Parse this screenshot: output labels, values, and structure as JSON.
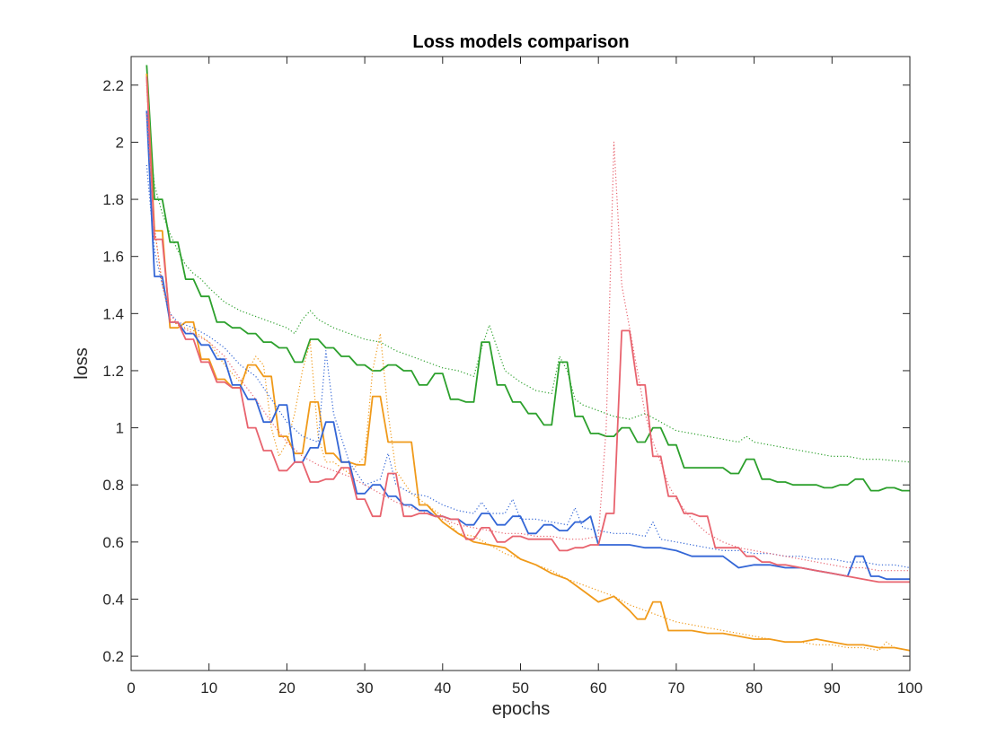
{
  "chart_data": {
    "type": "line",
    "title": "Loss models comparison",
    "xlabel": "epochs",
    "ylabel": "loss",
    "xlim": [
      0,
      100
    ],
    "ylim": [
      0.15,
      2.3
    ],
    "xticks": [
      0,
      10,
      20,
      30,
      40,
      50,
      60,
      70,
      80,
      90,
      100
    ],
    "yticks": [
      0.2,
      0.4,
      0.6,
      0.8,
      1,
      1.2,
      1.4,
      1.6,
      1.8,
      2,
      2.2
    ],
    "grid": false,
    "legend": "none",
    "series": [
      {
        "color": "#2ca02c",
        "style": "dotted",
        "x": [
          2,
          3,
          4,
          5,
          6,
          7,
          8,
          9,
          10,
          12,
          14,
          16,
          18,
          20,
          21,
          22,
          23,
          24,
          26,
          28,
          30,
          32,
          34,
          36,
          38,
          40,
          42,
          44,
          45,
          46,
          47,
          48,
          50,
          52,
          54,
          55,
          56,
          57,
          58,
          60,
          62,
          64,
          66,
          68,
          70,
          72,
          74,
          76,
          78,
          79,
          80,
          82,
          84,
          86,
          88,
          90,
          92,
          94,
          96,
          98,
          100
        ],
        "y": [
          2.1,
          1.85,
          1.75,
          1.68,
          1.62,
          1.57,
          1.54,
          1.52,
          1.49,
          1.44,
          1.41,
          1.39,
          1.37,
          1.35,
          1.33,
          1.38,
          1.41,
          1.38,
          1.35,
          1.33,
          1.31,
          1.3,
          1.27,
          1.25,
          1.23,
          1.21,
          1.2,
          1.18,
          1.28,
          1.36,
          1.28,
          1.2,
          1.16,
          1.13,
          1.12,
          1.25,
          1.2,
          1.1,
          1.08,
          1.06,
          1.04,
          1.03,
          1.05,
          1.02,
          0.99,
          0.98,
          0.97,
          0.96,
          0.95,
          0.97,
          0.95,
          0.94,
          0.93,
          0.92,
          0.91,
          0.9,
          0.9,
          0.89,
          0.89,
          0.885,
          0.88
        ]
      },
      {
        "color": "#2ca02c",
        "style": "solid",
        "x": [
          2,
          3,
          4,
          5,
          6,
          7,
          8,
          9,
          10,
          11,
          12,
          13,
          14,
          15,
          16,
          17,
          18,
          19,
          20,
          21,
          22,
          23,
          24,
          25,
          26,
          27,
          28,
          29,
          30,
          31,
          32,
          33,
          34,
          35,
          36,
          37,
          38,
          39,
          40,
          41,
          42,
          43,
          44,
          45,
          46,
          47,
          48,
          49,
          50,
          51,
          52,
          53,
          54,
          55,
          56,
          57,
          58,
          59,
          60,
          61,
          62,
          63,
          64,
          65,
          66,
          67,
          68,
          69,
          70,
          71,
          72,
          73,
          74,
          75,
          76,
          77,
          78,
          79,
          80,
          81,
          82,
          83,
          84,
          85,
          86,
          87,
          88,
          89,
          90,
          91,
          92,
          93,
          94,
          95,
          96,
          97,
          98,
          99,
          100
        ],
        "y": [
          2.27,
          1.8,
          1.8,
          1.65,
          1.65,
          1.52,
          1.52,
          1.46,
          1.46,
          1.37,
          1.37,
          1.35,
          1.35,
          1.33,
          1.33,
          1.3,
          1.3,
          1.28,
          1.28,
          1.23,
          1.23,
          1.31,
          1.31,
          1.28,
          1.28,
          1.25,
          1.25,
          1.22,
          1.22,
          1.2,
          1.2,
          1.22,
          1.22,
          1.2,
          1.2,
          1.15,
          1.15,
          1.19,
          1.19,
          1.1,
          1.1,
          1.09,
          1.09,
          1.3,
          1.3,
          1.15,
          1.15,
          1.09,
          1.09,
          1.05,
          1.05,
          1.01,
          1.01,
          1.23,
          1.23,
          1.04,
          1.04,
          0.98,
          0.98,
          0.97,
          0.97,
          1.0,
          1.0,
          0.95,
          0.95,
          1.0,
          1.0,
          0.94,
          0.94,
          0.86,
          0.86,
          0.86,
          0.86,
          0.86,
          0.86,
          0.84,
          0.84,
          0.89,
          0.89,
          0.82,
          0.82,
          0.81,
          0.81,
          0.8,
          0.8,
          0.8,
          0.8,
          0.79,
          0.79,
          0.8,
          0.8,
          0.82,
          0.82,
          0.78,
          0.78,
          0.79,
          0.79,
          0.78,
          0.78
        ]
      },
      {
        "color": "#f09a1a",
        "style": "dotted",
        "x": [
          2,
          3,
          4,
          5,
          6,
          8,
          10,
          12,
          14,
          15,
          16,
          17,
          18,
          19,
          20,
          21,
          22,
          23,
          24,
          25,
          26,
          28,
          30,
          31,
          32,
          33,
          34,
          36,
          38,
          40,
          42,
          44,
          46,
          48,
          50,
          52,
          54,
          56,
          58,
          60,
          62,
          64,
          66,
          68,
          70,
          72,
          74,
          76,
          78,
          80,
          82,
          84,
          86,
          88,
          90,
          92,
          94,
          96,
          97,
          98,
          100
        ],
        "y": [
          2.2,
          1.7,
          1.5,
          1.38,
          1.36,
          1.34,
          1.3,
          1.22,
          1.16,
          1.2,
          1.25,
          1.22,
          1.0,
          0.9,
          0.95,
          1.05,
          1.2,
          1.3,
          0.97,
          0.88,
          0.88,
          0.84,
          0.9,
          1.2,
          1.33,
          1.05,
          0.85,
          0.77,
          0.73,
          0.69,
          0.63,
          0.62,
          0.59,
          0.56,
          0.54,
          0.52,
          0.5,
          0.47,
          0.45,
          0.43,
          0.41,
          0.38,
          0.36,
          0.34,
          0.32,
          0.31,
          0.3,
          0.29,
          0.28,
          0.27,
          0.26,
          0.25,
          0.25,
          0.24,
          0.24,
          0.23,
          0.23,
          0.22,
          0.25,
          0.23,
          0.22
        ]
      },
      {
        "color": "#f09a1a",
        "style": "solid",
        "x": [
          2,
          3,
          4,
          5,
          6,
          7,
          8,
          9,
          10,
          11,
          12,
          13,
          14,
          15,
          16,
          17,
          18,
          19,
          20,
          21,
          22,
          23,
          24,
          25,
          26,
          27,
          28,
          29,
          30,
          31,
          32,
          33,
          34,
          35,
          36,
          37,
          38,
          40,
          42,
          44,
          46,
          48,
          50,
          52,
          54,
          56,
          58,
          60,
          62,
          64,
          65,
          66,
          67,
          68,
          69,
          70,
          72,
          74,
          76,
          78,
          80,
          82,
          84,
          86,
          88,
          90,
          92,
          94,
          96,
          98,
          100
        ],
        "y": [
          2.24,
          1.69,
          1.69,
          1.35,
          1.35,
          1.37,
          1.37,
          1.24,
          1.24,
          1.17,
          1.17,
          1.14,
          1.14,
          1.22,
          1.22,
          1.18,
          1.18,
          0.97,
          0.97,
          0.91,
          0.91,
          1.09,
          1.09,
          0.91,
          0.91,
          0.88,
          0.88,
          0.87,
          0.87,
          1.11,
          1.11,
          0.95,
          0.95,
          0.95,
          0.95,
          0.73,
          0.73,
          0.67,
          0.63,
          0.6,
          0.59,
          0.58,
          0.54,
          0.52,
          0.49,
          0.47,
          0.43,
          0.39,
          0.41,
          0.36,
          0.33,
          0.33,
          0.39,
          0.39,
          0.29,
          0.29,
          0.29,
          0.28,
          0.28,
          0.27,
          0.26,
          0.26,
          0.25,
          0.25,
          0.26,
          0.25,
          0.24,
          0.24,
          0.23,
          0.23,
          0.22
        ]
      },
      {
        "color": "#3366d6",
        "style": "dotted",
        "x": [
          2,
          3,
          4,
          5,
          6,
          8,
          10,
          12,
          14,
          16,
          18,
          20,
          22,
          24,
          25,
          26,
          28,
          30,
          32,
          33,
          34,
          36,
          38,
          40,
          42,
          44,
          45,
          46,
          48,
          49,
          50,
          52,
          54,
          56,
          57,
          58,
          60,
          62,
          64,
          66,
          67,
          68,
          70,
          72,
          74,
          76,
          78,
          80,
          82,
          84,
          86,
          88,
          90,
          92,
          94,
          96,
          98,
          100
        ],
        "y": [
          1.92,
          1.62,
          1.5,
          1.4,
          1.37,
          1.35,
          1.32,
          1.28,
          1.22,
          1.18,
          1.1,
          1.02,
          0.97,
          0.95,
          1.27,
          1.05,
          0.88,
          0.8,
          0.82,
          0.91,
          0.8,
          0.77,
          0.76,
          0.73,
          0.71,
          0.7,
          0.74,
          0.7,
          0.7,
          0.75,
          0.68,
          0.68,
          0.67,
          0.66,
          0.72,
          0.65,
          0.64,
          0.63,
          0.63,
          0.62,
          0.67,
          0.61,
          0.6,
          0.59,
          0.58,
          0.57,
          0.57,
          0.56,
          0.56,
          0.55,
          0.55,
          0.54,
          0.54,
          0.53,
          0.53,
          0.52,
          0.52,
          0.51
        ]
      },
      {
        "color": "#3366d6",
        "style": "solid",
        "x": [
          2,
          3,
          4,
          5,
          6,
          7,
          8,
          9,
          10,
          11,
          12,
          13,
          14,
          15,
          16,
          17,
          18,
          19,
          20,
          21,
          22,
          23,
          24,
          25,
          26,
          27,
          28,
          29,
          30,
          31,
          32,
          33,
          34,
          35,
          36,
          37,
          38,
          39,
          40,
          41,
          42,
          43,
          44,
          45,
          46,
          47,
          48,
          49,
          50,
          51,
          52,
          53,
          54,
          55,
          56,
          57,
          58,
          59,
          60,
          62,
          64,
          66,
          68,
          70,
          72,
          74,
          76,
          78,
          80,
          82,
          84,
          86,
          88,
          90,
          92,
          93,
          94,
          95,
          96,
          97,
          98,
          99,
          100
        ],
        "y": [
          2.11,
          1.53,
          1.53,
          1.37,
          1.37,
          1.33,
          1.33,
          1.29,
          1.29,
          1.24,
          1.24,
          1.15,
          1.15,
          1.1,
          1.1,
          1.02,
          1.02,
          1.08,
          1.08,
          0.88,
          0.88,
          0.93,
          0.93,
          1.02,
          1.02,
          0.88,
          0.88,
          0.77,
          0.77,
          0.8,
          0.8,
          0.76,
          0.76,
          0.73,
          0.73,
          0.71,
          0.71,
          0.69,
          0.69,
          0.68,
          0.68,
          0.66,
          0.66,
          0.7,
          0.7,
          0.66,
          0.66,
          0.69,
          0.69,
          0.63,
          0.63,
          0.66,
          0.66,
          0.64,
          0.64,
          0.67,
          0.67,
          0.69,
          0.59,
          0.59,
          0.59,
          0.58,
          0.58,
          0.57,
          0.55,
          0.55,
          0.55,
          0.51,
          0.52,
          0.52,
          0.51,
          0.51,
          0.5,
          0.49,
          0.48,
          0.55,
          0.55,
          0.48,
          0.48,
          0.47,
          0.47,
          0.47,
          0.47
        ]
      },
      {
        "color": "#e8636e",
        "style": "dotted",
        "x": [
          2,
          3,
          4,
          5,
          6,
          8,
          10,
          12,
          14,
          16,
          18,
          20,
          22,
          24,
          26,
          28,
          30,
          32,
          34,
          36,
          38,
          40,
          42,
          44,
          46,
          48,
          50,
          52,
          54,
          56,
          58,
          60,
          61,
          62,
          63,
          64,
          65,
          66,
          67,
          68,
          69,
          70,
          72,
          74,
          76,
          78,
          80,
          82,
          84,
          86,
          88,
          90,
          92,
          94,
          96,
          98,
          100
        ],
        "y": [
          2.1,
          1.7,
          1.5,
          1.4,
          1.36,
          1.33,
          1.3,
          1.25,
          1.17,
          1.1,
          1.02,
          0.95,
          0.9,
          0.87,
          0.85,
          0.83,
          0.8,
          0.77,
          0.74,
          0.72,
          0.7,
          0.68,
          0.66,
          0.65,
          0.64,
          0.63,
          0.63,
          0.62,
          0.62,
          0.61,
          0.61,
          0.62,
          1.0,
          2.0,
          1.5,
          1.35,
          1.2,
          1.05,
          0.95,
          0.88,
          0.8,
          0.75,
          0.68,
          0.63,
          0.6,
          0.58,
          0.57,
          0.56,
          0.55,
          0.54,
          0.53,
          0.52,
          0.51,
          0.51,
          0.5,
          0.5,
          0.5
        ]
      },
      {
        "color": "#e8636e",
        "style": "solid",
        "x": [
          2,
          3,
          4,
          5,
          6,
          7,
          8,
          9,
          10,
          11,
          12,
          13,
          14,
          15,
          16,
          17,
          18,
          19,
          20,
          21,
          22,
          23,
          24,
          25,
          26,
          27,
          28,
          29,
          30,
          31,
          32,
          33,
          34,
          35,
          36,
          37,
          38,
          39,
          40,
          41,
          42,
          43,
          44,
          45,
          46,
          47,
          48,
          49,
          50,
          51,
          52,
          53,
          54,
          55,
          56,
          57,
          58,
          59,
          60,
          61,
          62,
          63,
          64,
          65,
          66,
          67,
          68,
          69,
          70,
          71,
          72,
          73,
          74,
          75,
          76,
          77,
          78,
          79,
          80,
          81,
          82,
          83,
          84,
          86,
          88,
          90,
          92,
          94,
          96,
          98,
          100
        ],
        "y": [
          2.23,
          1.66,
          1.66,
          1.37,
          1.37,
          1.31,
          1.31,
          1.23,
          1.23,
          1.16,
          1.16,
          1.14,
          1.14,
          1.0,
          1.0,
          0.92,
          0.92,
          0.85,
          0.85,
          0.88,
          0.88,
          0.81,
          0.81,
          0.82,
          0.82,
          0.86,
          0.86,
          0.75,
          0.75,
          0.69,
          0.69,
          0.84,
          0.84,
          0.69,
          0.69,
          0.7,
          0.7,
          0.69,
          0.69,
          0.68,
          0.68,
          0.61,
          0.61,
          0.65,
          0.65,
          0.6,
          0.6,
          0.62,
          0.62,
          0.61,
          0.61,
          0.61,
          0.61,
          0.57,
          0.57,
          0.58,
          0.58,
          0.59,
          0.59,
          0.7,
          0.7,
          1.34,
          1.34,
          1.15,
          1.15,
          0.9,
          0.9,
          0.76,
          0.76,
          0.7,
          0.7,
          0.69,
          0.69,
          0.58,
          0.58,
          0.58,
          0.58,
          0.55,
          0.55,
          0.53,
          0.53,
          0.52,
          0.52,
          0.51,
          0.5,
          0.49,
          0.48,
          0.47,
          0.46,
          0.46,
          0.46
        ]
      }
    ]
  }
}
